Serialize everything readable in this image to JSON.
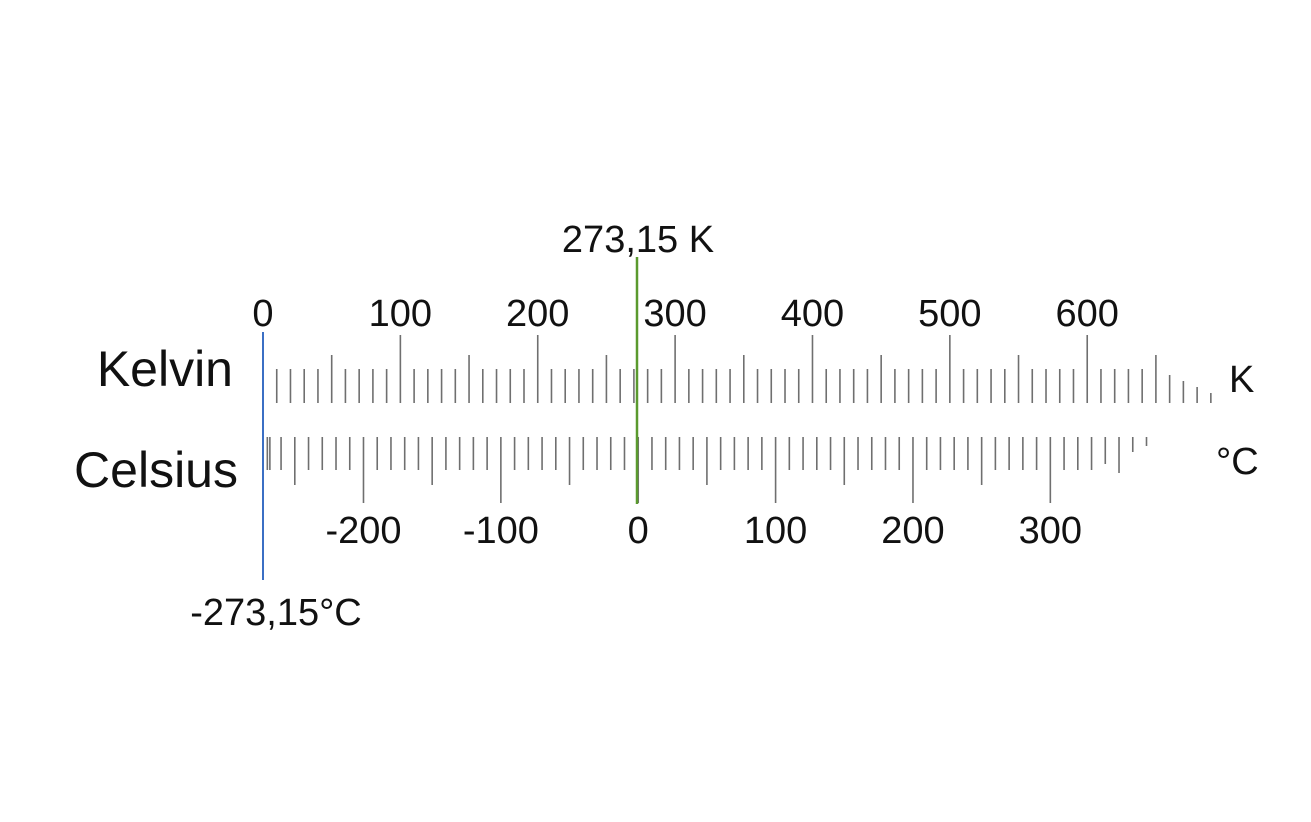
{
  "scales": {
    "kelvin": {
      "name": "Kelvin",
      "unit": "K",
      "labels": [
        0,
        100,
        200,
        300,
        400,
        500,
        600
      ],
      "range": [
        0,
        700
      ]
    },
    "celsius": {
      "name": "Celsius",
      "unit": "°C",
      "labels": [
        -200,
        -100,
        0,
        100,
        200,
        300
      ],
      "range": [
        -273.15,
        400
      ]
    }
  },
  "markers": {
    "absolute_zero": {
      "label": "-273,15°C",
      "kelvin": 0,
      "color": "#3b6fc4"
    },
    "freezing_point": {
      "label": "273,15 K",
      "kelvin": 273.15,
      "color": "#5a9a2e"
    }
  }
}
